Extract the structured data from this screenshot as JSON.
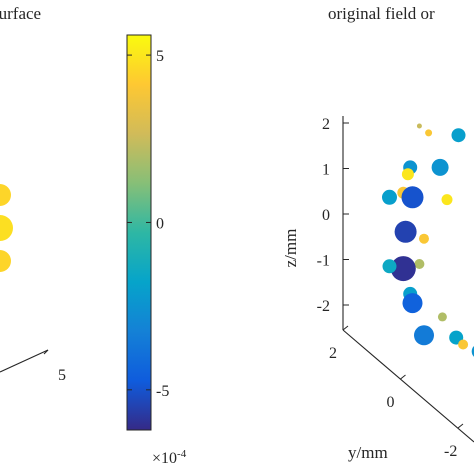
{
  "chart_data": [
    {
      "type": "scatter",
      "title": "surface",
      "axes_3d": true,
      "xlabel": "",
      "ylabel": "",
      "zlabel": "",
      "x_ticks_visible": [
        {
          "label": "5",
          "value": 5
        }
      ],
      "cluster": "single column of points at right edge of view",
      "points": [
        {
          "u": 0.0,
          "v": 0.75,
          "size": 1.1,
          "value": 4.5
        },
        {
          "u": 0.0,
          "v": 0.0,
          "size": 1.3,
          "value": 4.8
        },
        {
          "u": 0.0,
          "v": -0.75,
          "size": 1.1,
          "value": 4.5
        }
      ],
      "colorbar": {
        "ticks": [
          "5",
          "0",
          "-5"
        ],
        "tick_values": [
          5,
          0,
          -5
        ],
        "range": [
          -6.2,
          5.6
        ],
        "multiplier": "×10",
        "multiplier_exponent": "-4",
        "colormap": "parula"
      }
    },
    {
      "type": "scatter",
      "title": "original field or",
      "axes_3d": true,
      "zlabel": "z/mm",
      "ylabel": "y/mm",
      "z_ticks": [
        "2",
        "1",
        "0",
        "-1",
        "-2"
      ],
      "z_tick_values": [
        2,
        1,
        0,
        -1,
        -2
      ],
      "zlim": [
        -2.3,
        2.3
      ],
      "y_ticks": [
        "2",
        "0",
        "-2"
      ],
      "y_tick_values": [
        2,
        0,
        -2
      ],
      "color_range": [
        -6.2,
        5.6
      ],
      "points": [
        {
          "y": -2.2,
          "z": 2.0,
          "value": 2.5,
          "size": 0.25
        },
        {
          "y": -1.8,
          "z": 1.85,
          "value": 4.0,
          "size": 0.35
        },
        {
          "y": -0.5,
          "z": 1.8,
          "value": -2.0,
          "size": 0.7
        },
        {
          "y": -2.6,
          "z": 1.1,
          "value": -2.5,
          "size": 0.7
        },
        {
          "y": -1.3,
          "z": 1.1,
          "value": -2.5,
          "size": 0.85
        },
        {
          "y": -2.7,
          "z": 0.95,
          "value": 5.0,
          "size": 0.6
        },
        {
          "y": -2.9,
          "z": 0.55,
          "value": 4.0,
          "size": 0.6
        },
        {
          "y": -3.5,
          "z": 0.45,
          "value": -2.0,
          "size": 0.75
        },
        {
          "y": -2.5,
          "z": 0.45,
          "value": -5.0,
          "size": 1.1
        },
        {
          "y": -1.0,
          "z": 0.4,
          "value": 5.0,
          "size": 0.55
        },
        {
          "y": -2.8,
          "z": -0.3,
          "value": -5.5,
          "size": 1.1
        },
        {
          "y": -2.0,
          "z": -0.45,
          "value": 4.0,
          "size": 0.5
        },
        {
          "y": -2.2,
          "z": -1.0,
          "value": 2.0,
          "size": 0.5
        },
        {
          "y": -2.9,
          "z": -1.1,
          "value": -6.0,
          "size": 1.25
        },
        {
          "y": -3.5,
          "z": -1.05,
          "value": -1.5,
          "size": 0.7
        },
        {
          "y": -2.6,
          "z": -1.65,
          "value": -2.0,
          "size": 0.7
        },
        {
          "y": -2.5,
          "z": -1.85,
          "value": -4.5,
          "size": 1.0
        },
        {
          "y": -1.2,
          "z": -2.15,
          "value": 2.0,
          "size": 0.45
        },
        {
          "y": -2.0,
          "z": -2.55,
          "value": -3.5,
          "size": 1.0
        },
        {
          "y": -0.6,
          "z": -2.6,
          "value": -1.8,
          "size": 0.7
        },
        {
          "y": -0.3,
          "z": -2.75,
          "value": 4.0,
          "size": 0.5
        },
        {
          "y": 0.4,
          "z": -2.9,
          "value": -2.5,
          "size": 0.75
        }
      ]
    }
  ]
}
